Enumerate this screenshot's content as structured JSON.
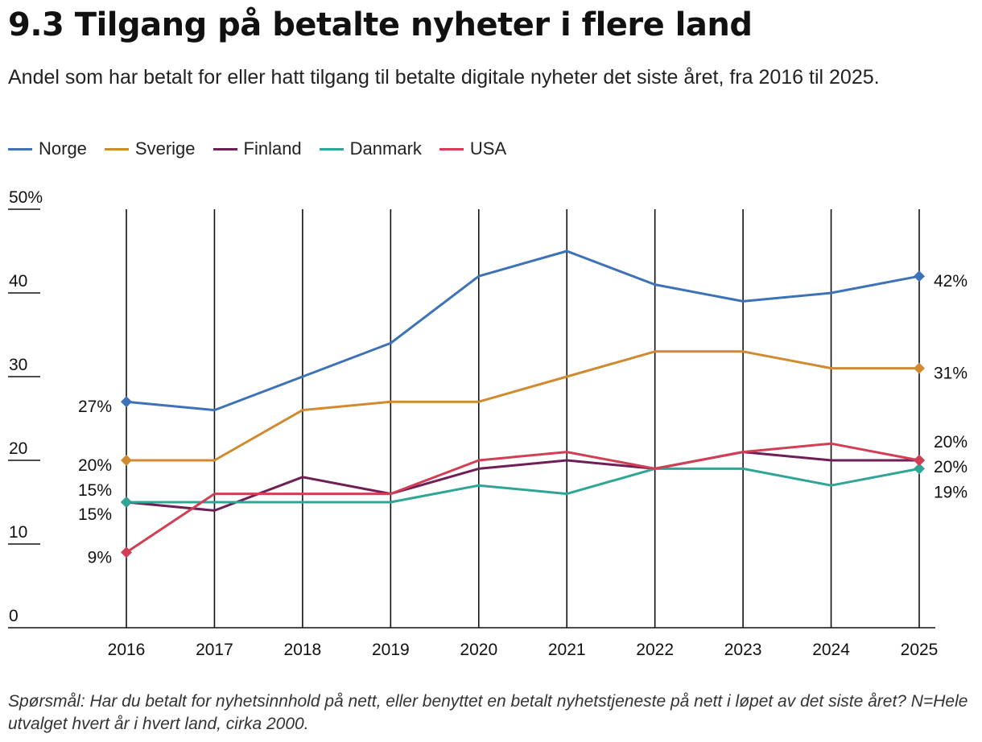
{
  "header": {
    "title": "9.3 Tilgang på betalte nyheter i flere land",
    "subtitle": "Andel som har betalt for eller hatt tilgang til betalte digitale nyheter det siste året, fra 2016 til 2025."
  },
  "footnote": "Spørsmål: Har du betalt for nyhetsinnhold på nett, eller benyttet en betalt nyhetstjeneste på nett i løpet av det siste året? N=Hele utvalget hvert år i hvert land, cirka 2000.",
  "chart_data": {
    "type": "line",
    "x": [
      "2016",
      "2017",
      "2018",
      "2019",
      "2020",
      "2021",
      "2022",
      "2023",
      "2024",
      "2025"
    ],
    "ylim": [
      0,
      50
    ],
    "yticks": [
      "0",
      "10",
      "20",
      "30",
      "40",
      "50%"
    ],
    "grid": "vertical",
    "legend_position": "top-left",
    "series": [
      {
        "name": "Norge",
        "color": "#3d72b8",
        "values": [
          27,
          26,
          30,
          34,
          42,
          45,
          41,
          39,
          40,
          42
        ],
        "start_label": "27%",
        "end_label": "42%"
      },
      {
        "name": "Sverige",
        "color": "#d08a30",
        "values": [
          20,
          20,
          26,
          27,
          27,
          30,
          33,
          33,
          31,
          31
        ],
        "start_label": "20%",
        "end_label": "31%"
      },
      {
        "name": "Finland",
        "color": "#6e1f55",
        "values": [
          15,
          14,
          18,
          16,
          19,
          20,
          19,
          21,
          20,
          20
        ],
        "start_label": "15%",
        "end_label": "20%"
      },
      {
        "name": "Danmark",
        "color": "#2fa595",
        "values": [
          15,
          15,
          15,
          15,
          17,
          16,
          19,
          19,
          17,
          19
        ],
        "start_label": "15%",
        "end_label": "19%"
      },
      {
        "name": "USA",
        "color": "#d23f55",
        "values": [
          9,
          16,
          16,
          16,
          20,
          21,
          19,
          21,
          22,
          20
        ],
        "start_label": "9%",
        "end_label": "20%"
      }
    ]
  }
}
